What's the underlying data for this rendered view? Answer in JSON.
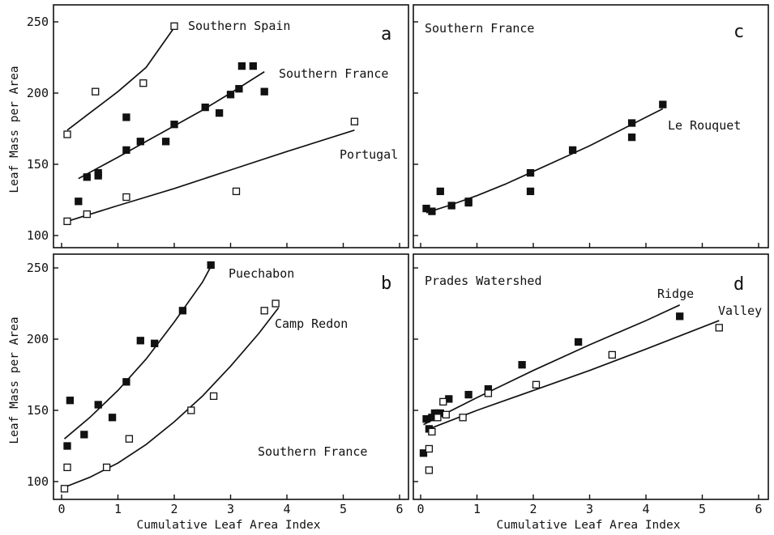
{
  "axis_labels": {
    "y": "Leaf Mass per Area",
    "x": "Cumulative Leaf Area Index"
  },
  "chart_data": [
    {
      "panel": "a",
      "type": "scatter",
      "title": "",
      "xlabel": "",
      "ylabel": "Leaf Mass per Area",
      "xlim": [
        0,
        6
      ],
      "ylim": [
        90,
        255
      ],
      "xticks": [
        "0",
        "1",
        "2",
        "3",
        "4",
        "5",
        "6"
      ],
      "yticks": [
        "100",
        "150",
        "200",
        "250"
      ],
      "annotations": [
        "Southern Spain",
        "Southern France",
        "Portugal"
      ],
      "series": [
        {
          "name": "Southern Spain",
          "marker": "open",
          "points": [
            [
              0.1,
              171
            ],
            [
              0.6,
              201
            ],
            [
              1.45,
              207
            ],
            [
              2.0,
              247
            ]
          ],
          "fit": [
            [
              0.1,
              174
            ],
            [
              0.5,
              186
            ],
            [
              1.0,
              201
            ],
            [
              1.5,
              218
            ],
            [
              2.0,
              246
            ]
          ]
        },
        {
          "name": "Southern France",
          "marker": "filled",
          "points": [
            [
              0.3,
              124
            ],
            [
              0.45,
              141
            ],
            [
              0.65,
              142
            ],
            [
              0.65,
              144
            ],
            [
              1.15,
              160
            ],
            [
              1.15,
              183
            ],
            [
              1.4,
              166
            ],
            [
              1.85,
              166
            ],
            [
              2.0,
              178
            ],
            [
              2.55,
              190
            ],
            [
              2.8,
              186
            ],
            [
              3.0,
              199
            ],
            [
              3.15,
              203
            ],
            [
              3.2,
              219
            ],
            [
              3.4,
              219
            ],
            [
              3.6,
              201
            ]
          ],
          "fit": [
            [
              0.3,
              140
            ],
            [
              1.0,
              155
            ],
            [
              1.5,
              166
            ],
            [
              2.0,
              177
            ],
            [
              2.5,
              188
            ],
            [
              3.0,
              200
            ],
            [
              3.6,
              215
            ]
          ]
        },
        {
          "name": "Portugal",
          "marker": "open",
          "points": [
            [
              0.1,
              110
            ],
            [
              0.45,
              115
            ],
            [
              1.15,
              127
            ],
            [
              3.1,
              131
            ],
            [
              5.2,
              180
            ]
          ],
          "fit": [
            [
              0.1,
              110
            ],
            [
              1.0,
              121
            ],
            [
              2.0,
              133
            ],
            [
              3.0,
              146
            ],
            [
              4.0,
              159
            ],
            [
              5.2,
              174
            ]
          ]
        }
      ]
    },
    {
      "panel": "b",
      "type": "scatter",
      "title": "",
      "xlabel": "Cumulative Leaf Area Index",
      "ylabel": "Leaf Mass per Area",
      "xlim": [
        0,
        6
      ],
      "ylim": [
        90,
        255
      ],
      "xticks": [
        "0",
        "1",
        "2",
        "3",
        "4",
        "5",
        "6"
      ],
      "yticks": [
        "100",
        "150",
        "200",
        "250"
      ],
      "annotations": [
        "Puechabon",
        "Camp Redon",
        "Southern France"
      ],
      "series": [
        {
          "name": "Puechabon",
          "marker": "filled",
          "points": [
            [
              0.1,
              125
            ],
            [
              0.15,
              157
            ],
            [
              0.4,
              133
            ],
            [
              0.65,
              154
            ],
            [
              0.9,
              145
            ],
            [
              1.15,
              170
            ],
            [
              1.4,
              199
            ],
            [
              1.65,
              197
            ],
            [
              2.15,
              220
            ],
            [
              2.65,
              252
            ]
          ],
          "fit": [
            [
              0.05,
              130
            ],
            [
              0.5,
              145
            ],
            [
              1.0,
              164
            ],
            [
              1.5,
              186
            ],
            [
              2.0,
              212
            ],
            [
              2.5,
              240
            ],
            [
              2.65,
              251
            ]
          ]
        },
        {
          "name": "Camp Redon",
          "marker": "open",
          "points": [
            [
              0.05,
              95
            ],
            [
              0.1,
              110
            ],
            [
              0.8,
              110
            ],
            [
              1.2,
              130
            ],
            [
              2.3,
              150
            ],
            [
              2.7,
              160
            ],
            [
              3.6,
              220
            ],
            [
              3.8,
              225
            ]
          ],
          "fit": [
            [
              0.05,
              96
            ],
            [
              0.5,
              103
            ],
            [
              1.0,
              113
            ],
            [
              1.5,
              126
            ],
            [
              2.0,
              142
            ],
            [
              2.5,
              160
            ],
            [
              3.0,
              181
            ],
            [
              3.5,
              204
            ],
            [
              3.85,
              222
            ]
          ]
        }
      ]
    },
    {
      "panel": "c",
      "type": "scatter",
      "title": "",
      "xlabel": "",
      "ylabel": "",
      "xlim": [
        0,
        6
      ],
      "ylim": [
        90,
        255
      ],
      "xticks": [
        "0",
        "1",
        "2",
        "3",
        "4",
        "5",
        "6"
      ],
      "yticks": [
        "100",
        "150",
        "200",
        "250"
      ],
      "annotations": [
        "Southern France",
        "Le Rouquet"
      ],
      "series": [
        {
          "name": "Le Rouquet",
          "marker": "filled",
          "points": [
            [
              0.1,
              119
            ],
            [
              0.2,
              117
            ],
            [
              0.35,
              131
            ],
            [
              0.55,
              121
            ],
            [
              0.85,
              124
            ],
            [
              0.85,
              123
            ],
            [
              1.95,
              144
            ],
            [
              1.95,
              131
            ],
            [
              2.7,
              160
            ],
            [
              3.75,
              179
            ],
            [
              3.75,
              169
            ],
            [
              4.3,
              192
            ]
          ],
          "fit": [
            [
              0.1,
              116
            ],
            [
              0.5,
              121
            ],
            [
              1.0,
              128
            ],
            [
              1.5,
              136
            ],
            [
              2.0,
              145
            ],
            [
              2.5,
              154
            ],
            [
              3.0,
              163
            ],
            [
              3.5,
              173
            ],
            [
              4.0,
              183
            ],
            [
              4.3,
              189
            ]
          ]
        }
      ]
    },
    {
      "panel": "d",
      "type": "scatter",
      "title": "",
      "xlabel": "Cumulative Leaf Area Index",
      "ylabel": "",
      "xlim": [
        0,
        6
      ],
      "ylim": [
        90,
        255
      ],
      "xticks": [
        "0",
        "1",
        "2",
        "3",
        "4",
        "5",
        "6"
      ],
      "yticks": [
        "100",
        "150",
        "200",
        "250"
      ],
      "annotations": [
        "Prades Watershed",
        "Ridge",
        "Valley"
      ],
      "series": [
        {
          "name": "Ridge",
          "marker": "filled",
          "points": [
            [
              0.05,
              120
            ],
            [
              0.1,
              144
            ],
            [
              0.15,
              137
            ],
            [
              0.2,
              145
            ],
            [
              0.25,
              148
            ],
            [
              0.3,
              148
            ],
            [
              0.35,
              148
            ],
            [
              0.5,
              158
            ],
            [
              0.85,
              161
            ],
            [
              1.2,
              165
            ],
            [
              1.8,
              182
            ],
            [
              2.8,
              198
            ],
            [
              4.6,
              216
            ]
          ],
          "fit": [
            [
              0.05,
              140
            ],
            [
              0.5,
              149
            ],
            [
              1.0,
              159
            ],
            [
              2.0,
              178
            ],
            [
              3.0,
              196
            ],
            [
              4.0,
              213
            ],
            [
              4.6,
              224
            ]
          ]
        },
        {
          "name": "Valley",
          "marker": "open",
          "points": [
            [
              0.15,
              108
            ],
            [
              0.15,
              123
            ],
            [
              0.2,
              135
            ],
            [
              0.3,
              145
            ],
            [
              0.4,
              156
            ],
            [
              0.45,
              147
            ],
            [
              0.75,
              145
            ],
            [
              1.2,
              162
            ],
            [
              2.05,
              168
            ],
            [
              3.4,
              189
            ],
            [
              5.3,
              208
            ]
          ],
          "fit": [
            [
              0.15,
              137
            ],
            [
              1.0,
              150
            ],
            [
              2.0,
              164
            ],
            [
              3.0,
              178
            ],
            [
              4.0,
              193
            ],
            [
              5.3,
              213
            ]
          ]
        }
      ]
    }
  ]
}
